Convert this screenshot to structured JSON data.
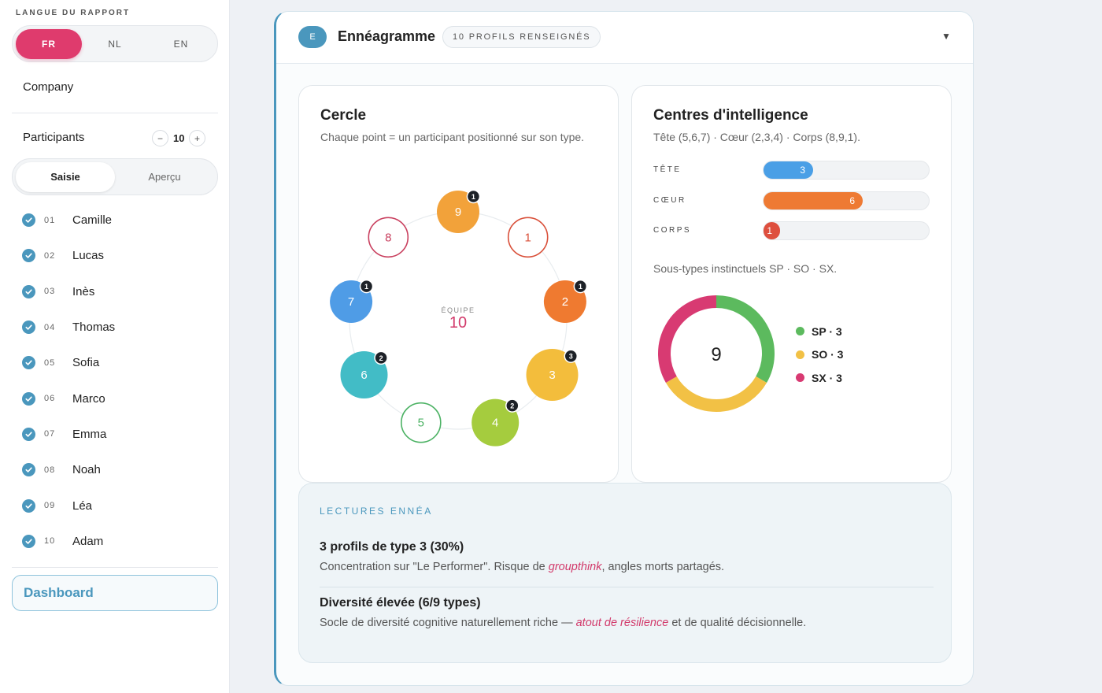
{
  "sidebar": {
    "lang_title": "LANGUE DU RAPPORT",
    "languages": [
      "FR",
      "NL",
      "EN"
    ],
    "active_language": "FR",
    "company": "Company",
    "participants_label": "Participants",
    "participants_count": "10",
    "minus": "−",
    "plus": "+",
    "modes": [
      "Saisie",
      "Aperçu"
    ],
    "active_mode": "Saisie",
    "participants": [
      {
        "num": "01",
        "name": "Camille"
      },
      {
        "num": "02",
        "name": "Lucas"
      },
      {
        "num": "03",
        "name": "Inès"
      },
      {
        "num": "04",
        "name": "Thomas"
      },
      {
        "num": "05",
        "name": "Sofia"
      },
      {
        "num": "06",
        "name": "Marco"
      },
      {
        "num": "07",
        "name": "Emma"
      },
      {
        "num": "08",
        "name": "Noah"
      },
      {
        "num": "09",
        "name": "Léa"
      },
      {
        "num": "10",
        "name": "Adam"
      }
    ],
    "dashboard_label": "Dashboard"
  },
  "card": {
    "badge": "E",
    "title": "Ennéagramme",
    "profiles_chip": "10 PROFILS RENSEIGNÉS",
    "collapse_icon": "▼"
  },
  "cercle": {
    "title": "Cercle",
    "subtitle": "Chaque point = un participant positionné sur son type.",
    "center_label": "ÉQUIPE",
    "center_value": "10",
    "types": [
      {
        "type": "9",
        "count": 1,
        "color": "#f2a23a"
      },
      {
        "type": "1",
        "count": 0,
        "color": "#d9503a"
      },
      {
        "type": "2",
        "count": 1,
        "color": "#ef7a30"
      },
      {
        "type": "3",
        "count": 3,
        "color": "#f3bd3c"
      },
      {
        "type": "4",
        "count": 2,
        "color": "#a5cc3e"
      },
      {
        "type": "5",
        "count": 0,
        "color": "#4cb264"
      },
      {
        "type": "6",
        "count": 2,
        "color": "#42bcc6"
      },
      {
        "type": "7",
        "count": 1,
        "color": "#4f9ce6"
      },
      {
        "type": "8",
        "count": 0,
        "color": "#c9405f"
      }
    ]
  },
  "centres": {
    "title": "Centres d'intelligence",
    "subtitle": "Tête (5,6,7) · Cœur (2,3,4) · Corps (8,9,1).",
    "max": 10,
    "bars": [
      {
        "label": "TÊTE",
        "value": 3,
        "display": "3",
        "color": "#4a9fe6"
      },
      {
        "label": "CŒUR",
        "value": 6,
        "display": "6",
        "color": "#ee7a33"
      },
      {
        "label": "CORPS",
        "value": 1,
        "display": "1",
        "color": "#de4f3e"
      }
    ],
    "subtypes_text": "Sous-types instinctuels SP · SO · SX.",
    "donut_total": "9",
    "subtypes": [
      {
        "label": "SP · 3",
        "value": 3,
        "color": "#5cba5e"
      },
      {
        "label": "SO · 3",
        "value": 3,
        "color": "#f2c145"
      },
      {
        "label": "SX · 3",
        "value": 3,
        "color": "#d83a72"
      }
    ]
  },
  "lectures": {
    "title": "LECTURES ENNÉA",
    "items": [
      {
        "head": "3 profils de type 3 (30%)",
        "body_before": "Concentration sur \"Le Performer\". Risque de ",
        "body_em": "groupthink",
        "body_after": ", angles morts partagés."
      },
      {
        "head": "Diversité élevée (6/9 types)",
        "body_before": "Socle de diversité cognitive naturellement riche — ",
        "body_em": "atout de résilience",
        "body_after": " et de qualité décisionnelle."
      }
    ]
  }
}
